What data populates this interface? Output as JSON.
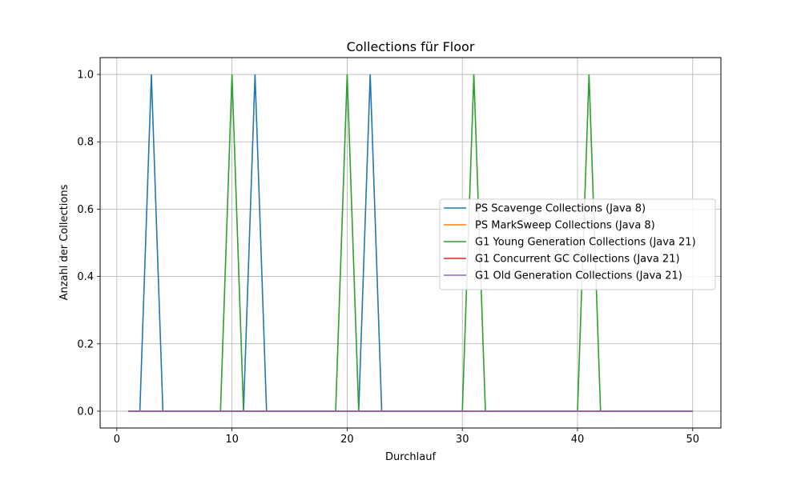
{
  "chart_data": {
    "type": "line",
    "title": "Collections für Floor",
    "xlabel": "Durchlauf",
    "ylabel": "Anzahl der Collections",
    "xlim": [
      -1.45,
      52.45
    ],
    "ylim": [
      -0.05,
      1.05
    ],
    "xticks": [
      0,
      10,
      20,
      30,
      40,
      50
    ],
    "xtick_labels": [
      "0",
      "10",
      "20",
      "30",
      "40",
      "50"
    ],
    "yticks": [
      0.0,
      0.2,
      0.4,
      0.6,
      0.8,
      1.0
    ],
    "ytick_labels": [
      "0.0",
      "0.2",
      "0.4",
      "0.6",
      "0.8",
      "1.0"
    ],
    "grid": true,
    "legend_position": "center-right",
    "x": [
      1,
      2,
      3,
      4,
      5,
      6,
      7,
      8,
      9,
      10,
      11,
      12,
      13,
      14,
      15,
      16,
      17,
      18,
      19,
      20,
      21,
      22,
      23,
      24,
      25,
      26,
      27,
      28,
      29,
      30,
      31,
      32,
      33,
      34,
      35,
      36,
      37,
      38,
      39,
      40,
      41,
      42,
      43,
      44,
      45,
      46,
      47,
      48,
      49,
      50
    ],
    "series": [
      {
        "name": "PS Scavenge Collections (Java 8)",
        "color": "#1f77b4",
        "values": [
          0,
          0,
          1,
          0,
          0,
          0,
          0,
          0,
          0,
          0,
          0,
          1,
          0,
          0,
          0,
          0,
          0,
          0,
          0,
          0,
          0,
          1,
          0,
          0,
          0,
          0,
          0,
          0,
          0,
          0,
          0,
          0,
          0,
          0,
          0,
          0,
          0,
          0,
          0,
          0,
          0,
          0,
          0,
          0,
          0,
          0,
          0,
          0,
          0,
          0
        ]
      },
      {
        "name": "PS MarkSweep Collections (Java 8)",
        "color": "#ff7f0e",
        "values": [
          0,
          0,
          0,
          0,
          0,
          0,
          0,
          0,
          0,
          0,
          0,
          0,
          0,
          0,
          0,
          0,
          0,
          0,
          0,
          0,
          0,
          0,
          0,
          0,
          0,
          0,
          0,
          0,
          0,
          0,
          0,
          0,
          0,
          0,
          0,
          0,
          0,
          0,
          0,
          0,
          0,
          0,
          0,
          0,
          0,
          0,
          0,
          0,
          0,
          0
        ]
      },
      {
        "name": "G1 Young Generation Collections (Java 21)",
        "color": "#2ca02c",
        "values": [
          0,
          0,
          0,
          0,
          0,
          0,
          0,
          0,
          0,
          1,
          0,
          0,
          0,
          0,
          0,
          0,
          0,
          0,
          0,
          1,
          0,
          0,
          0,
          0,
          0,
          0,
          0,
          0,
          0,
          0,
          1,
          0,
          0,
          0,
          0,
          0,
          0,
          0,
          0,
          0,
          1,
          0,
          0,
          0,
          0,
          0,
          0,
          0,
          0,
          0
        ]
      },
      {
        "name": "G1 Concurrent GC Collections (Java 21)",
        "color": "#d62728",
        "values": [
          0,
          0,
          0,
          0,
          0,
          0,
          0,
          0,
          0,
          0,
          0,
          0,
          0,
          0,
          0,
          0,
          0,
          0,
          0,
          0,
          0,
          0,
          0,
          0,
          0,
          0,
          0,
          0,
          0,
          0,
          0,
          0,
          0,
          0,
          0,
          0,
          0,
          0,
          0,
          0,
          0,
          0,
          0,
          0,
          0,
          0,
          0,
          0,
          0,
          0
        ]
      },
      {
        "name": "G1 Old Generation Collections (Java 21)",
        "color": "#9467bd",
        "values": [
          0,
          0,
          0,
          0,
          0,
          0,
          0,
          0,
          0,
          0,
          0,
          0,
          0,
          0,
          0,
          0,
          0,
          0,
          0,
          0,
          0,
          0,
          0,
          0,
          0,
          0,
          0,
          0,
          0,
          0,
          0,
          0,
          0,
          0,
          0,
          0,
          0,
          0,
          0,
          0,
          0,
          0,
          0,
          0,
          0,
          0,
          0,
          0,
          0,
          0
        ]
      }
    ]
  }
}
